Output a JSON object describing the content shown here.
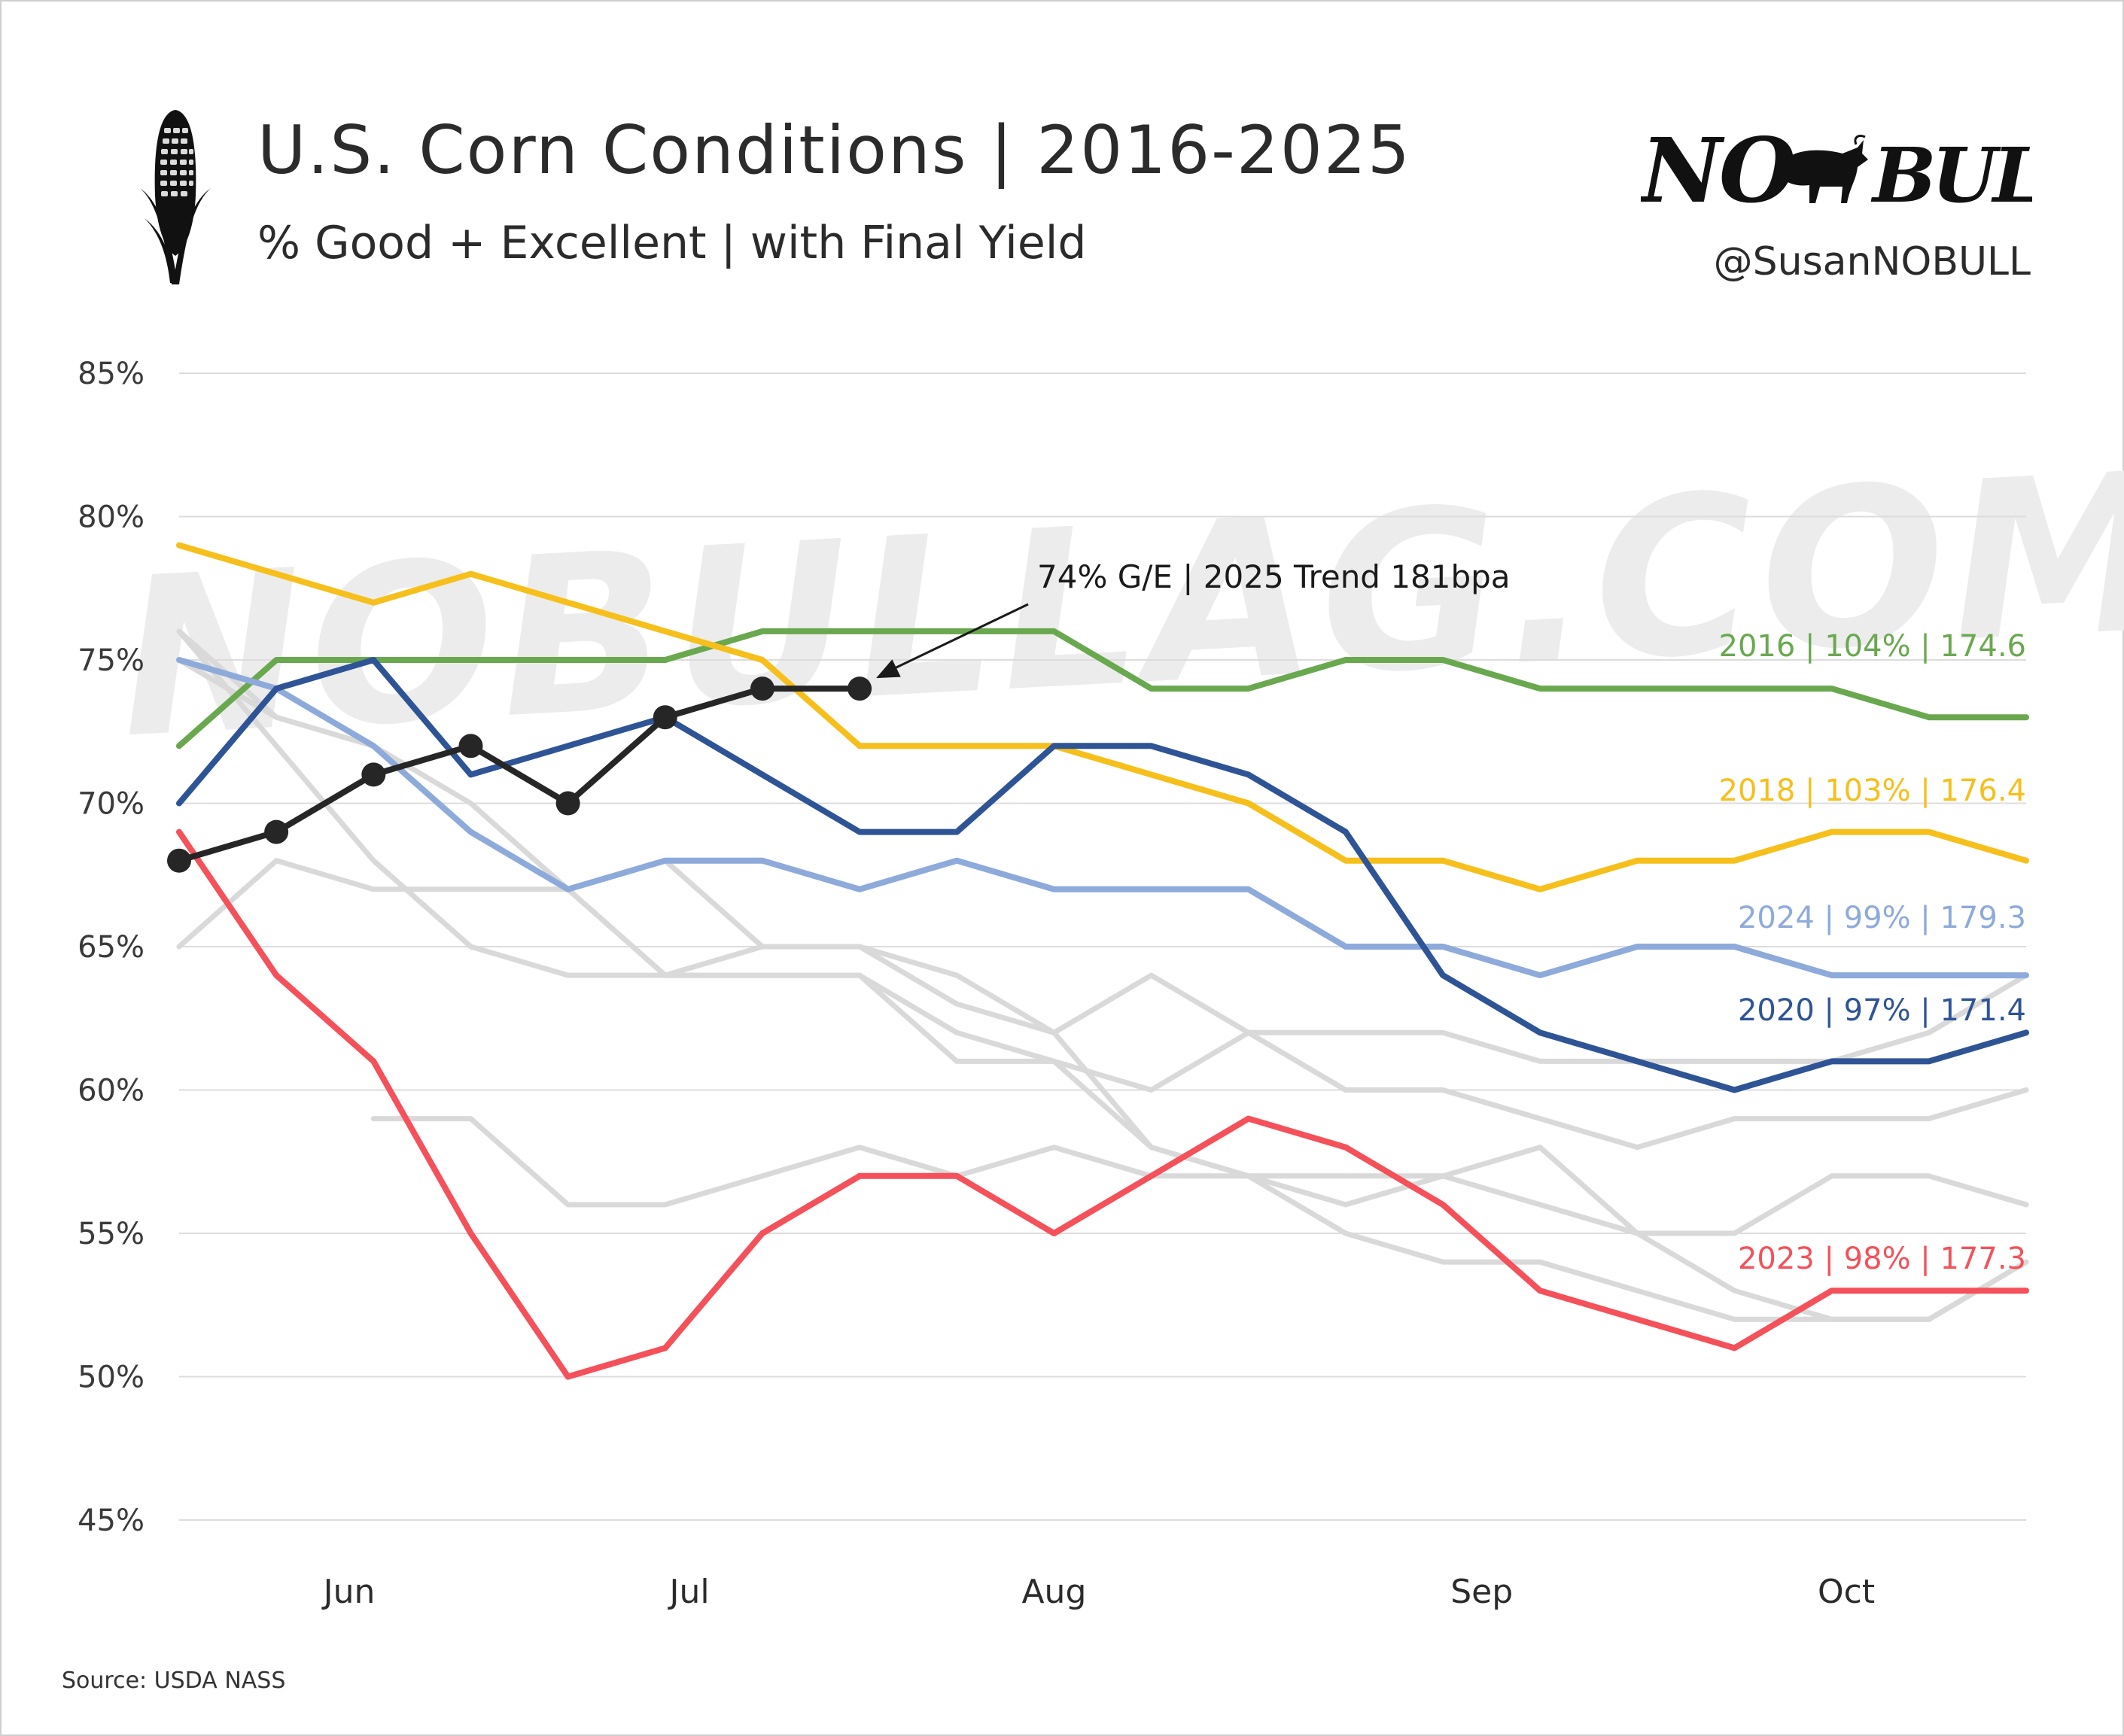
{
  "header": {
    "title": "U.S. Corn Conditions | 2016-2025",
    "subtitle": "% Good + Excellent | with Final Yield",
    "brand_logo_text": "NO BULL",
    "handle": "@SusanNOBULL",
    "watermark": "NOBULLAG.COM",
    "source": "Source: USDA NASS",
    "icon": "corn-icon"
  },
  "colors": {
    "2016": "#6aa84f",
    "2018": "#f6bf1b",
    "2020": "#2f5496",
    "2023": "#f4515a",
    "2024": "#8eaadb",
    "2025": "#262626",
    "other_years": "#d9d9d9",
    "grid": "#dcdcdc"
  },
  "chart_data": {
    "type": "line",
    "title": "U.S. Corn Conditions | 2016-2025",
    "subtitle": "% Good + Excellent | with Final Yield",
    "xlabel": "",
    "ylabel": "",
    "y_ticks": [
      "85%",
      "80%",
      "75%",
      "70%",
      "65%",
      "60%",
      "55%",
      "50%",
      "45%"
    ],
    "ylim": [
      45,
      85
    ],
    "x_month_ticks": [
      {
        "label": "Jun",
        "week": 1.75
      },
      {
        "label": "Jul",
        "week": 5.25
      },
      {
        "label": "Aug",
        "week": 9
      },
      {
        "label": "Sep",
        "week": 13.4
      },
      {
        "label": "Oct",
        "week": 17.15
      }
    ],
    "x_range_weeks": [
      0,
      19
    ],
    "grid": "horizontal",
    "series": [
      {
        "name": "",
        "color_key": "other_years",
        "start_week": 0,
        "values": [
          76,
          72,
          68,
          65,
          64,
          64,
          64,
          64,
          62,
          61,
          58,
          57,
          55,
          54,
          54,
          53,
          52,
          52,
          52,
          54
        ]
      },
      {
        "name": "",
        "color_key": "other_years",
        "start_week": 0,
        "values": [
          65,
          68,
          67,
          67,
          67,
          64,
          65,
          65,
          64,
          62,
          64,
          62,
          62,
          62,
          61,
          61,
          61,
          61,
          62,
          64
        ]
      },
      {
        "name": "",
        "color_key": "other_years",
        "start_week": 0,
        "values": [
          75,
          73,
          72,
          70,
          67,
          64,
          64,
          64,
          61,
          61,
          60,
          62,
          60,
          60,
          59,
          58,
          59,
          59,
          59,
          60
        ]
      },
      {
        "name": "",
        "color_key": "other_years",
        "start_week": 2,
        "values": [
          59,
          59,
          56,
          56,
          57,
          58,
          57,
          58,
          57,
          57,
          56,
          57,
          58,
          55,
          55,
          57,
          57,
          56
        ]
      },
      {
        "name": "",
        "color_key": "other_years",
        "start_week": 0,
        "values": [
          76,
          73,
          72,
          69,
          67,
          68,
          65,
          65,
          63,
          62,
          58,
          57,
          57,
          57,
          56,
          55,
          53,
          52,
          52,
          54
        ]
      },
      {
        "name": "2016 | 104% | 174.6",
        "color_key": "2016",
        "start_week": 0,
        "values": [
          72,
          75,
          75,
          75,
          75,
          75,
          76,
          76,
          76,
          76,
          74,
          74,
          75,
          75,
          74,
          74,
          74,
          74,
          73,
          73
        ]
      },
      {
        "name": "2018 | 103% | 176.4",
        "color_key": "2018",
        "start_week": 0,
        "values": [
          79,
          78,
          77,
          78,
          77,
          76,
          75,
          72,
          72,
          72,
          71,
          70,
          68,
          68,
          67,
          68,
          68,
          69,
          69,
          68
        ]
      },
      {
        "name": "2024 | 99% | 179.3",
        "color_key": "2024",
        "start_week": 0,
        "values": [
          75,
          74,
          72,
          69,
          67,
          68,
          68,
          67,
          68,
          67,
          67,
          67,
          65,
          65,
          64,
          65,
          65,
          64,
          64,
          64
        ]
      },
      {
        "name": "2020 | 97% | 171.4",
        "color_key": "2020",
        "start_week": 0,
        "values": [
          70,
          74,
          75,
          71,
          72,
          73,
          71,
          69,
          69,
          72,
          72,
          71,
          69,
          64,
          62,
          61,
          60,
          61,
          61,
          62
        ]
      },
      {
        "name": "2023 | 98% | 177.3",
        "color_key": "2023",
        "start_week": 0,
        "values": [
          69,
          64,
          61,
          55,
          50,
          51,
          55,
          57,
          57,
          55,
          57,
          59,
          58,
          56,
          53,
          52,
          51,
          53,
          53,
          53
        ]
      },
      {
        "name": "",
        "color_key": "2025",
        "start_week": 0,
        "markers": true,
        "values": [
          68,
          69,
          71,
          72,
          70,
          73,
          74,
          74
        ]
      }
    ],
    "annotations": [
      {
        "text": "74% G/E | 2025 Trend 181bpa",
        "points_to_week": 7,
        "points_to_value": 74
      }
    ]
  }
}
